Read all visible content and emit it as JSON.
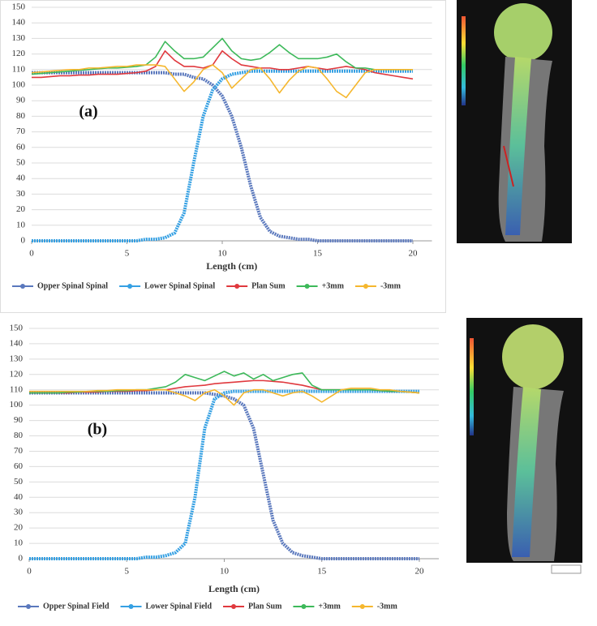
{
  "chart_data": [
    {
      "type": "line",
      "annotation": "(a)",
      "x_label": "Length (cm)",
      "grid": true,
      "xlim": [
        0,
        21
      ],
      "xticks": [
        0,
        5,
        10,
        15,
        20
      ],
      "ylim": [
        0,
        150
      ],
      "yticks": [
        0,
        10,
        20,
        30,
        40,
        50,
        60,
        70,
        80,
        90,
        100,
        110,
        120,
        130,
        140,
        150
      ],
      "x": [
        0,
        0.5,
        1,
        1.5,
        2,
        2.5,
        3,
        3.5,
        4,
        4.5,
        5,
        5.5,
        6,
        6.5,
        7,
        7.5,
        8,
        8.5,
        9,
        9.5,
        10,
        10.5,
        11,
        11.5,
        12,
        12.5,
        13,
        13.5,
        14,
        14.5,
        15,
        15.5,
        16,
        16.5,
        17,
        17.5,
        18,
        18.5,
        19,
        19.5,
        20
      ],
      "series": [
        {
          "name": "Opper Spinal Spinal",
          "color": "#5a78bd",
          "values": [
            108,
            108,
            108,
            108,
            108,
            108,
            108,
            108,
            108,
            108,
            108,
            108,
            108,
            108,
            108,
            107,
            107,
            105,
            104,
            100,
            93,
            80,
            60,
            35,
            15,
            6,
            3,
            2,
            1,
            1,
            0,
            0,
            0,
            0,
            0,
            0,
            0,
            0,
            0,
            0,
            0
          ]
        },
        {
          "name": "Lower Spinal Spinal",
          "color": "#35a0e3",
          "values": [
            0,
            0,
            0,
            0,
            0,
            0,
            0,
            0,
            0,
            0,
            0,
            0,
            1,
            1,
            2,
            5,
            18,
            50,
            80,
            97,
            104,
            107,
            108,
            109,
            109,
            109,
            109,
            109,
            109,
            109,
            109,
            109,
            109,
            109,
            109,
            109,
            109,
            109,
            109,
            109,
            109
          ]
        },
        {
          "name": "Plan Sum",
          "color": "#e0393e",
          "values": [
            105,
            105,
            105.5,
            106,
            106,
            106.5,
            106.5,
            107,
            107,
            107,
            107.5,
            108,
            109,
            112,
            122,
            116,
            112,
            112,
            111,
            113,
            122,
            117,
            113,
            112,
            111,
            111,
            110,
            110,
            111,
            112,
            111,
            110,
            111,
            112,
            111,
            110,
            108,
            107,
            106,
            105,
            104
          ]
        },
        {
          "name": "+3mm",
          "color": "#3db95a",
          "values": [
            107,
            107.5,
            108,
            108.5,
            109,
            109.5,
            110,
            110.5,
            111,
            111,
            111.5,
            112,
            113,
            118,
            128,
            122,
            117,
            117,
            118,
            124,
            130,
            122,
            117,
            116,
            117,
            121,
            126,
            121,
            117,
            117,
            117,
            118,
            120,
            115,
            111,
            111,
            110,
            110,
            110,
            110,
            110
          ]
        },
        {
          "name": "-3mm",
          "color": "#f5b72e",
          "values": [
            108,
            108.5,
            109,
            109.5,
            110,
            110,
            111,
            111,
            111.5,
            112,
            112,
            113,
            113,
            113,
            112,
            104,
            96,
            102,
            110,
            113,
            108,
            98,
            104,
            110,
            111,
            104,
            95,
            103,
            109,
            112,
            111,
            104,
            96,
            92,
            100,
            108,
            110,
            110,
            110,
            110,
            110
          ]
        }
      ]
    },
    {
      "type": "line",
      "annotation": "(b)",
      "x_label": "Length (cm)",
      "grid": true,
      "xlim": [
        0,
        21
      ],
      "xticks": [
        0,
        5,
        10,
        15,
        20
      ],
      "ylim": [
        0,
        150
      ],
      "yticks": [
        0,
        10,
        20,
        30,
        40,
        50,
        60,
        70,
        80,
        90,
        100,
        110,
        120,
        130,
        140,
        150
      ],
      "x": [
        0,
        0.5,
        1,
        1.5,
        2,
        2.5,
        3,
        3.5,
        4,
        4.5,
        5,
        5.5,
        6,
        6.5,
        7,
        7.5,
        8,
        8.5,
        9,
        9.5,
        10,
        10.5,
        11,
        11.5,
        12,
        12.5,
        13,
        13.5,
        14,
        14.5,
        15,
        15.5,
        16,
        16.5,
        17,
        17.5,
        18,
        18.5,
        19,
        19.5,
        20
      ],
      "series": [
        {
          "name": "Opper Spinal Field",
          "color": "#5a78bd",
          "values": [
            108,
            108,
            108,
            108,
            108,
            108,
            108,
            108,
            108,
            108,
            108,
            108,
            108,
            108,
            108,
            108,
            108,
            108,
            108,
            107,
            106,
            104,
            100,
            85,
            55,
            25,
            10,
            4,
            2,
            1,
            0,
            0,
            0,
            0,
            0,
            0,
            0,
            0,
            0,
            0,
            0
          ]
        },
        {
          "name": "Lower Spinal Field",
          "color": "#35a0e3",
          "values": [
            0,
            0,
            0,
            0,
            0,
            0,
            0,
            0,
            0,
            0,
            0,
            0,
            1,
            1,
            2,
            4,
            10,
            40,
            85,
            104,
            108,
            109,
            109,
            109,
            109,
            109,
            109,
            109,
            109,
            109,
            109,
            109,
            109,
            109,
            109,
            109,
            109,
            109,
            109,
            109,
            109
          ]
        },
        {
          "name": "Plan Sum",
          "color": "#e0393e",
          "values": [
            108,
            108,
            108,
            108,
            108,
            108.5,
            108.5,
            108.5,
            109,
            109,
            109,
            109.5,
            109.5,
            110,
            110,
            111,
            112,
            112.5,
            113,
            114,
            114.5,
            115,
            115.5,
            116,
            116,
            115.5,
            115,
            114,
            113,
            111.5,
            110,
            110,
            110,
            110,
            110,
            110,
            109.5,
            109,
            109,
            108.5,
            108
          ]
        },
        {
          "name": "+3mm",
          "color": "#3db95a",
          "values": [
            108,
            108,
            108,
            108,
            108.5,
            108.5,
            109,
            109,
            109,
            109.5,
            109.5,
            110,
            110,
            111,
            112,
            115,
            120,
            118,
            116,
            119,
            122,
            119,
            121,
            117,
            120,
            116,
            118,
            120,
            121,
            113,
            110,
            110,
            110,
            110,
            110,
            110,
            109.5,
            109,
            109,
            108.5,
            108
          ]
        },
        {
          "name": "-3mm",
          "color": "#f5b72e",
          "values": [
            109,
            109,
            109,
            109,
            109,
            109,
            109,
            109.5,
            109.5,
            110,
            110,
            110,
            110,
            110,
            110,
            108,
            106,
            103,
            108,
            110,
            106,
            100,
            108,
            110,
            110,
            108,
            106,
            108,
            109,
            106,
            102,
            106,
            110,
            111,
            111,
            111,
            110,
            110,
            109,
            108.5,
            108
          ]
        }
      ]
    }
  ]
}
